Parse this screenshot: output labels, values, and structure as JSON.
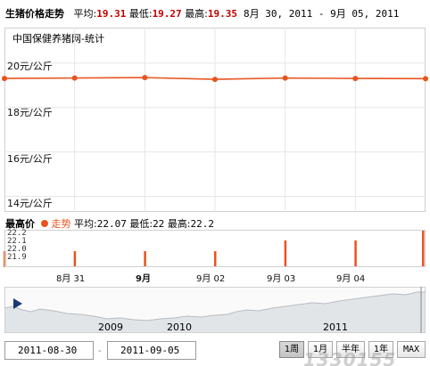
{
  "header": {
    "title": "生猪价格走势",
    "avg_label": "平均:",
    "avg_value": "19.31",
    "min_label": "最低:",
    "min_value": "19.27",
    "max_label": "最高:",
    "max_value": "19.35",
    "range": "8月 30, 2011 - 9月 05, 2011"
  },
  "chart_label": "中国保健养猪网-统计",
  "colors": {
    "line": "#e8541e",
    "accent_red": "#c00000",
    "bar": "#e8541e",
    "nav_fill": "#e4e6e8"
  },
  "chart_data": [
    {
      "type": "line",
      "title": "生猪价格走势",
      "y_tick_labels": [
        "20元/公斤",
        "18元/公斤",
        "16元/公斤",
        "14元/公斤"
      ],
      "y_ticks": [
        20,
        18,
        16,
        14
      ],
      "ylim": [
        13.3,
        21.6
      ],
      "x_tick_labels": [
        "8月 31",
        "9月",
        "9月 02",
        "9月 03",
        "9月 04"
      ],
      "x": [
        "2011-08-30",
        "2011-08-31",
        "2011-09-01",
        "2011-09-02",
        "2011-09-03",
        "2011-09-04",
        "2011-09-05"
      ],
      "series": [
        {
          "values": [
            19.31,
            19.33,
            19.35,
            19.27,
            19.33,
            19.31,
            19.3
          ]
        }
      ],
      "grid": true
    },
    {
      "type": "bar",
      "title": "最高价",
      "legend": "走势",
      "avg_label": "平均:",
      "avg_value": "22.07",
      "min_label": "最低:",
      "min_value": "22",
      "max_label": "最高:",
      "max_value": "22.2",
      "y_tick_labels": [
        "22.2",
        "22.1",
        "22.0",
        "21.9"
      ],
      "ylim": [
        21.85,
        22.2
      ],
      "x": [
        "2011-08-30",
        "2011-08-31",
        "2011-09-01",
        "2011-09-02",
        "2011-09-03",
        "2011-09-04",
        "2011-09-05"
      ],
      "values": [
        22.0,
        22.0,
        22.0,
        22.0,
        22.1,
        22.1,
        22.2
      ]
    }
  ],
  "navigator": {
    "year_labels": [
      "2009",
      "2010",
      "2011"
    ]
  },
  "controls": {
    "from_date": "2011-08-30",
    "to_date": "2011-09-05",
    "range_buttons": [
      "1周",
      "1月",
      "半年",
      "1年",
      "MAX"
    ]
  },
  "watermark": "1330155"
}
